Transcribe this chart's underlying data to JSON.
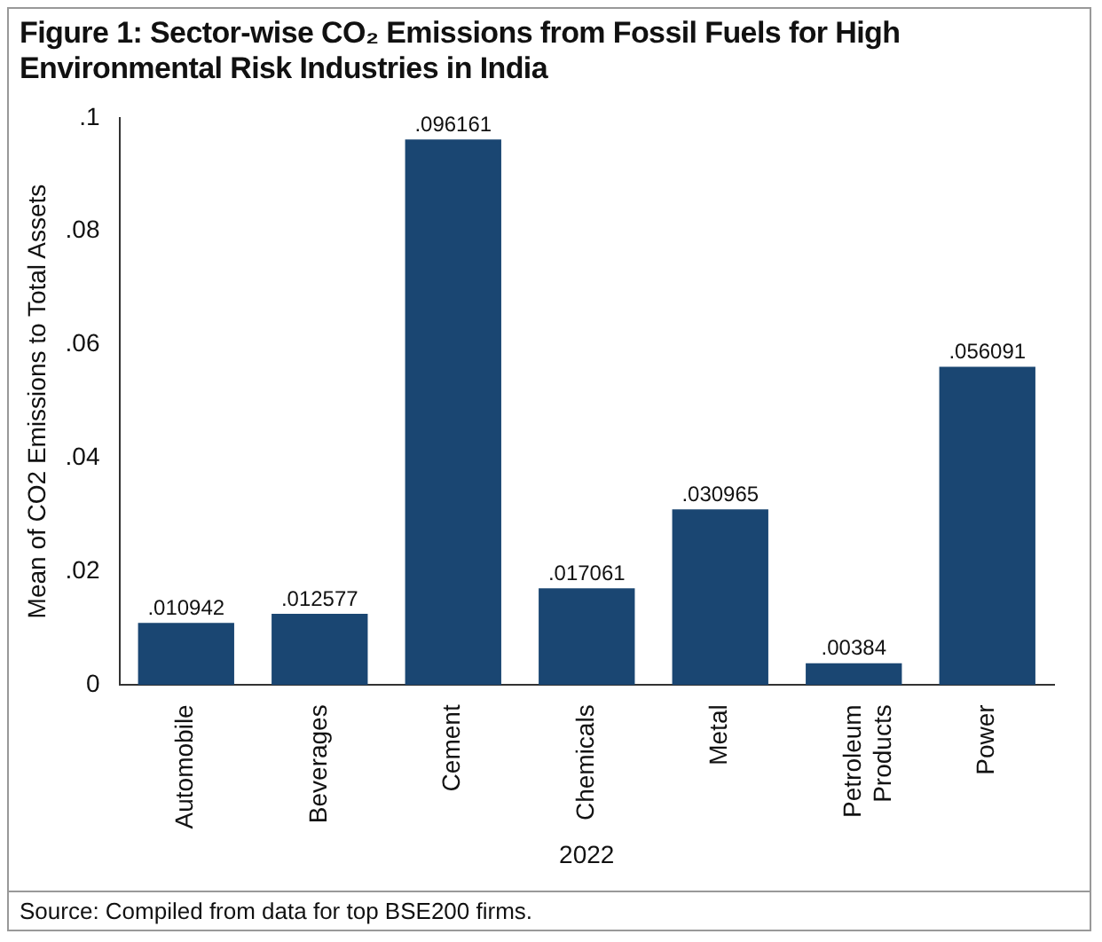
{
  "chart_data": {
    "type": "bar",
    "title": "Figure 1: Sector-wise CO₂ Emissions from Fossil Fuels for High Environmental Risk Industries in India",
    "xlabel": "2022",
    "ylabel": "Mean of CO2 Emissions to Total Assets",
    "categories": [
      "Automobile",
      "Beverages",
      "Cement",
      "Chemicals",
      "Metal",
      "Petroleum Products",
      "Power"
    ],
    "values": [
      0.010942,
      0.012577,
      0.096161,
      0.017061,
      0.030965,
      0.00384,
      0.056091
    ],
    "value_labels": [
      ".010942",
      ".012577",
      ".096161",
      ".017061",
      ".030965",
      ".00384",
      ".056091"
    ],
    "color": "#1a4672",
    "ylim": [
      0,
      0.1
    ],
    "yticks": [
      0,
      {
        "value": 0.02,
        "label": ".02"
      },
      {
        "value": 0.04,
        "label": ".04"
      },
      {
        "value": 0.06,
        "label": ".06"
      },
      {
        "value": 0.08,
        "label": ".08"
      },
      {
        "value": 0.1,
        "label": ".1"
      }
    ],
    "grid": false,
    "legend": false,
    "annotations": [
      "Source: Compiled from data for top BSE200 firms."
    ]
  }
}
